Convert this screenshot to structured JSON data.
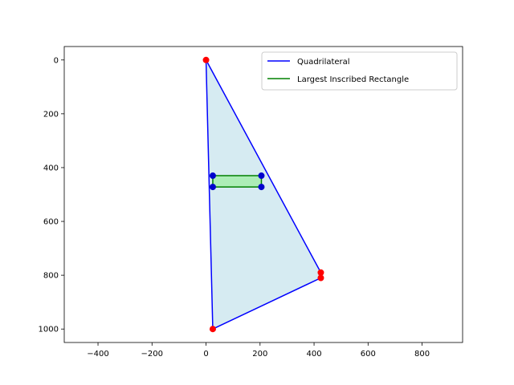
{
  "chart_data": {
    "type": "scatter",
    "x_ticks": [
      -400,
      -200,
      0,
      200,
      400,
      600,
      800
    ],
    "y_ticks": [
      0,
      200,
      400,
      600,
      800,
      1000
    ],
    "xlim": [
      -525,
      950
    ],
    "ylim": [
      1050,
      -50
    ],
    "y_inverted": true,
    "legend": {
      "placement": "top-right",
      "entries": [
        "Quadrilateral",
        "Largest Inscribed Rectangle"
      ]
    },
    "series": [
      {
        "name": "Quadrilateral",
        "kind": "polygon",
        "line_color": "#0000ff",
        "fill_color": "#add8e6",
        "points": [
          [
            0,
            0
          ],
          [
            425,
            790
          ],
          [
            425,
            810
          ],
          [
            25,
            1000
          ]
        ],
        "vertex_color": "#ff0000"
      },
      {
        "name": "Largest Inscribed Rectangle",
        "kind": "polygon",
        "line_color": "#008000",
        "fill_color": "#90ee90",
        "points": [
          [
            25,
            430
          ],
          [
            205,
            430
          ],
          [
            205,
            472
          ],
          [
            25,
            472
          ]
        ],
        "vertex_color": "#0000cd"
      }
    ]
  }
}
